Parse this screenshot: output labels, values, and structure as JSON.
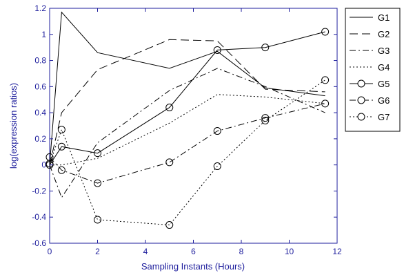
{
  "chart_data": {
    "type": "line",
    "title": "",
    "xlabel": "Sampling Instants (Hours)",
    "ylabel": "log(expression ratios)",
    "xlim": [
      0,
      12
    ],
    "ylim": [
      -0.6,
      1.2
    ],
    "x_ticks": [
      "0",
      "2",
      "4",
      "6",
      "8",
      "10",
      "12"
    ],
    "y_ticks": [
      "1.2",
      "1",
      "0.8",
      "0.6",
      "0.4",
      "0.2",
      "0",
      "-0.2",
      "-0.4",
      "-0.6"
    ],
    "grid": false,
    "legend_position": "outside-right-top",
    "axis_color": "#1c1c9c",
    "series": [
      {
        "name": "G1",
        "dash": "solid",
        "marker": "none",
        "x": [
          0,
          0.5,
          2,
          5,
          7,
          9,
          11.5
        ],
        "y": [
          0.0,
          1.17,
          0.86,
          0.74,
          0.87,
          0.59,
          0.53
        ]
      },
      {
        "name": "G2",
        "dash": "longdash",
        "marker": "none",
        "x": [
          0,
          0.5,
          2,
          5,
          7,
          9,
          11.5
        ],
        "y": [
          0.0,
          0.4,
          0.73,
          0.96,
          0.95,
          0.58,
          0.56
        ]
      },
      {
        "name": "G3",
        "dash": "dashdot",
        "marker": "none",
        "x": [
          0,
          0.5,
          2,
          5,
          7,
          9,
          11.5
        ],
        "y": [
          0.0,
          -0.25,
          0.17,
          0.57,
          0.74,
          0.6,
          0.4
        ]
      },
      {
        "name": "G4",
        "dash": "dotted",
        "marker": "none",
        "x": [
          0,
          0.5,
          2,
          5,
          7,
          9,
          11.5
        ],
        "y": [
          0.0,
          0.0,
          0.05,
          0.32,
          0.54,
          0.52,
          0.47
        ]
      },
      {
        "name": "G5",
        "dash": "solid",
        "marker": "circle",
        "x": [
          0,
          0.5,
          2,
          5,
          7,
          9,
          11.5
        ],
        "y": [
          0.0,
          0.14,
          0.09,
          0.44,
          0.88,
          0.9,
          1.02
        ]
      },
      {
        "name": "G6",
        "dash": "dashdot",
        "marker": "circle",
        "x": [
          0,
          0.5,
          2,
          5,
          7,
          9,
          11.5
        ],
        "y": [
          0.06,
          -0.04,
          -0.14,
          0.02,
          0.26,
          0.36,
          0.47
        ]
      },
      {
        "name": "G7",
        "dash": "dotted",
        "marker": "circle",
        "x": [
          0,
          0.5,
          2,
          5,
          7,
          9,
          11.5
        ],
        "y": [
          0.01,
          0.27,
          -0.42,
          -0.46,
          -0.01,
          0.34,
          0.65
        ]
      }
    ]
  }
}
